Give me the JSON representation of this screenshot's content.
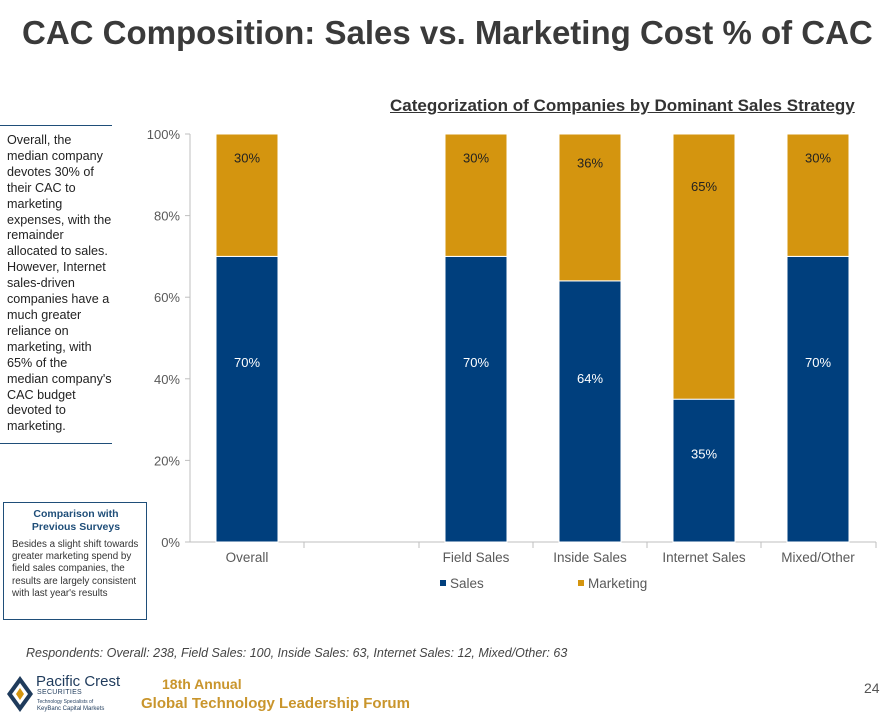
{
  "slide": {
    "title": "CAC Composition: Sales vs. Marketing Cost % of CAC",
    "subtitle": "Categorization of Companies by Dominant Sales Strategy",
    "side_note": "Overall, the median company devotes 30% of their CAC to marketing expenses, with the remainder allocated to sales. However, Internet sales-driven companies have a much greater reliance on marketing, with 65% of the median company's CAC budget devoted to marketing.",
    "comparison_box": {
      "title": "Comparison with Previous Surveys",
      "text": "Besides a slight shift towards greater marketing spend by field sales companies, the results are largely consistent with last year's results"
    },
    "footnote": "Respondents: Overall: 238, Field Sales: 100, Inside Sales: 63, Internet Sales: 12, Mixed/Other: 63",
    "page_number": "24",
    "logo": {
      "name": "Pacific Crest",
      "sub": "SECURITIES",
      "tagline": "Technology Specialists of",
      "bank": "KeyBanc Capital Markets"
    },
    "forum": {
      "line1": "18th Annual",
      "line2": "Global Technology Leadership Forum"
    }
  },
  "chart_data": {
    "type": "bar",
    "stacked": true,
    "title": "Categorization of Companies by Dominant Sales Strategy",
    "categories": [
      "Overall",
      "Field Sales",
      "Inside Sales",
      "Internet Sales",
      "Mixed/Other"
    ],
    "series": [
      {
        "name": "Sales",
        "values": [
          70,
          70,
          64,
          35,
          70
        ],
        "labels": [
          "70%",
          "70%",
          "64%",
          "35%",
          "70%"
        ],
        "color": "#003f7d"
      },
      {
        "name": "Marketing",
        "values": [
          30,
          30,
          36,
          65,
          30
        ],
        "labels": [
          "30%",
          "30%",
          "36%",
          "65%",
          "30%"
        ],
        "color": "#d4950f"
      }
    ],
    "ylim": [
      0,
      100
    ],
    "yticks": [
      0,
      20,
      40,
      60,
      80,
      100
    ],
    "ytick_labels": [
      "0%",
      "20%",
      "40%",
      "60%",
      "80%",
      "100%"
    ],
    "grid": false,
    "legend_position": "bottom"
  }
}
